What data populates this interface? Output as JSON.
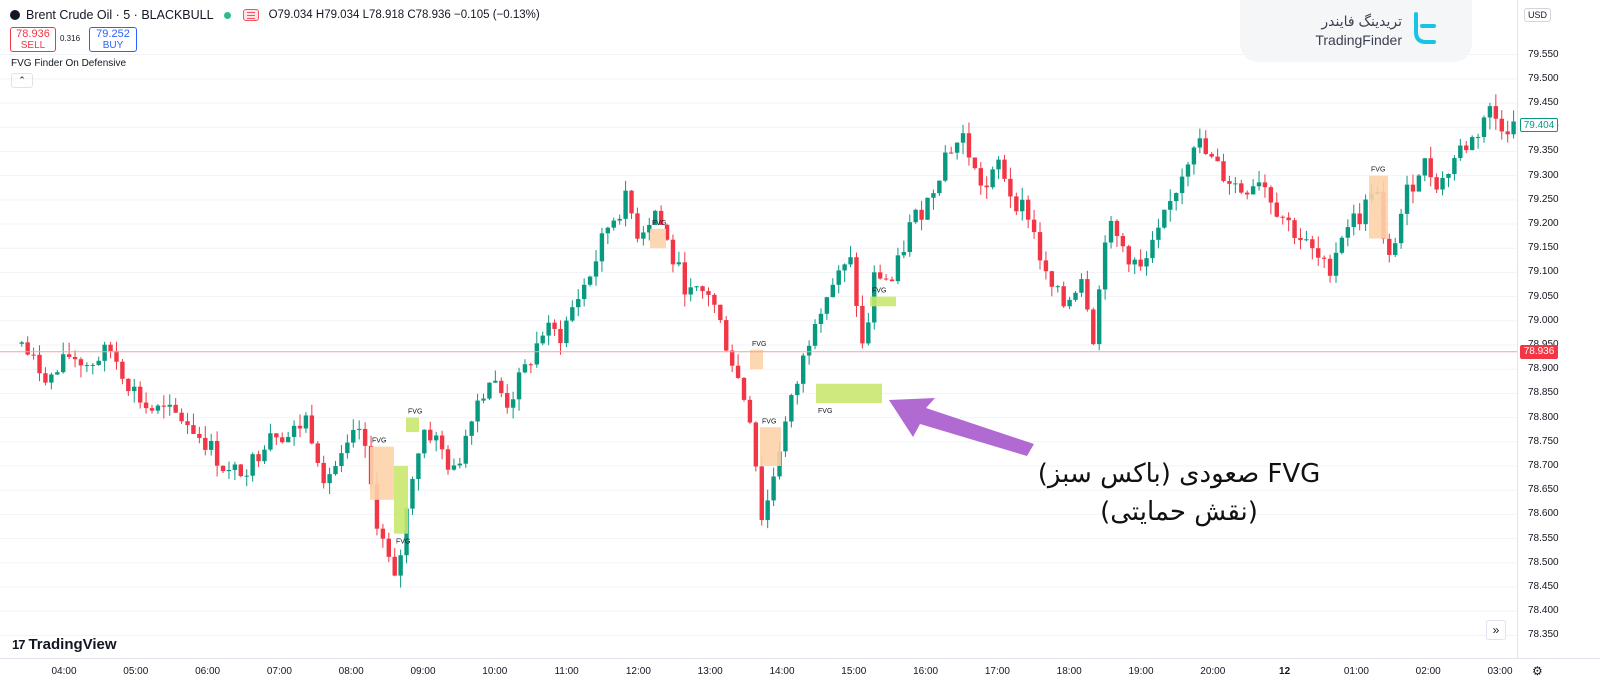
{
  "header": {
    "symbol": "Brent Crude Oil · 5 · BLACKBULL",
    "ohlc": "O79.034 H79.034 L78.918 C78.936 −0.105 (−0.13%)",
    "sell_price": "78.936",
    "sell_label": "SELL",
    "spread": "0.316",
    "buy_price": "79.252",
    "buy_label": "BUY",
    "indicator": "FVG Finder On Defensive",
    "collapse_icon": "chevron-up-icon"
  },
  "price_axis": {
    "currency": "USD",
    "ticks": [
      "79.550",
      "79.500",
      "79.450",
      "79.400",
      "79.350",
      "79.300",
      "79.250",
      "79.200",
      "79.150",
      "79.100",
      "79.050",
      "79.000",
      "78.950",
      "78.900",
      "78.850",
      "78.800",
      "78.750",
      "78.700",
      "78.650",
      "78.600",
      "78.550",
      "78.500",
      "78.450",
      "78.400",
      "78.350"
    ],
    "current_price": "78.936",
    "ma_price": "79.404"
  },
  "time_axis": {
    "ticks": [
      "04:00",
      "05:00",
      "06:00",
      "07:00",
      "08:00",
      "09:00",
      "10:00",
      "11:00",
      "12:00",
      "13:00",
      "14:00",
      "15:00",
      "16:00",
      "17:00",
      "18:00",
      "19:00",
      "20:00",
      "12",
      "01:00",
      "02:00",
      "03:00"
    ]
  },
  "branding": {
    "tradingview": "TradingView",
    "brand_fa": "تریدینگ فایندر",
    "brand_en": "TradingFinder"
  },
  "annotation": {
    "line1": "FVG صعودی (باکس سبز)",
    "line2": "(نقش حمایتی)"
  },
  "fvg_label": "FVG",
  "colors": {
    "up": "#089981",
    "down": "#f23645",
    "bull_fvg": "#c9e86e",
    "bear_fvg": "#fcd3a8",
    "arrow": "#b26ad3",
    "price_line": "#f7a1a8"
  },
  "chart_data": {
    "type": "candlestick",
    "symbol": "Brent Crude Oil",
    "timeframe": "5",
    "ylim": [
      78.33,
      79.57
    ],
    "current_price": 78.936,
    "path": [
      [
        "03:20",
        78.97
      ],
      [
        "03:35",
        78.91
      ],
      [
        "03:50",
        78.88
      ],
      [
        "04:05",
        78.93
      ],
      [
        "04:20",
        78.91
      ],
      [
        "04:40",
        78.94
      ],
      [
        "04:55",
        78.87
      ],
      [
        "05:10",
        78.82
      ],
      [
        "05:25",
        78.81
      ],
      [
        "05:40",
        78.8
      ],
      [
        "06:00",
        78.75
      ],
      [
        "06:20",
        78.68
      ],
      [
        "06:40",
        78.71
      ],
      [
        "06:55",
        78.78
      ],
      [
        "07:10",
        78.76
      ],
      [
        "07:25",
        78.8
      ],
      [
        "07:40",
        78.68
      ],
      [
        "07:55",
        78.71
      ],
      [
        "08:10",
        78.78
      ],
      [
        "08:25",
        78.58
      ],
      [
        "08:40",
        78.45
      ],
      [
        "08:55",
        78.7
      ],
      [
        "09:05",
        78.78
      ],
      [
        "09:15",
        78.75
      ],
      [
        "09:30",
        78.68
      ],
      [
        "09:45",
        78.82
      ],
      [
        "10:00",
        78.88
      ],
      [
        "10:15",
        78.83
      ],
      [
        "10:30",
        78.9
      ],
      [
        "10:45",
        78.98
      ],
      [
        "11:00",
        78.97
      ],
      [
        "11:10",
        79.03
      ],
      [
        "11:25",
        79.1
      ],
      [
        "11:40",
        79.2
      ],
      [
        "11:55",
        79.25
      ],
      [
        "12:05",
        79.18
      ],
      [
        "12:20",
        79.23
      ],
      [
        "12:35",
        79.12
      ],
      [
        "12:50",
        79.05
      ],
      [
        "13:05",
        79.06
      ],
      [
        "13:20",
        78.95
      ],
      [
        "13:40",
        78.8
      ],
      [
        "13:50",
        78.58
      ],
      [
        "14:05",
        78.75
      ],
      [
        "14:20",
        78.88
      ],
      [
        "14:35",
        79.02
      ],
      [
        "14:50",
        79.08
      ],
      [
        "15:05",
        79.12
      ],
      [
        "15:15",
        78.93
      ],
      [
        "15:25",
        79.1
      ],
      [
        "15:40",
        79.08
      ],
      [
        "15:55",
        79.2
      ],
      [
        "16:10",
        79.25
      ],
      [
        "16:25",
        79.35
      ],
      [
        "16:40",
        79.38
      ],
      [
        "16:50",
        79.3
      ],
      [
        "17:00",
        79.27
      ],
      [
        "17:10",
        79.33
      ],
      [
        "17:20",
        79.26
      ],
      [
        "17:35",
        79.22
      ],
      [
        "17:50",
        79.08
      ],
      [
        "18:05",
        79.03
      ],
      [
        "18:20",
        79.1
      ],
      [
        "18:30",
        78.96
      ],
      [
        "18:40",
        79.2
      ],
      [
        "18:55",
        79.15
      ],
      [
        "19:10",
        79.1
      ],
      [
        "19:25",
        79.18
      ],
      [
        "19:40",
        79.28
      ],
      [
        "19:55",
        79.38
      ],
      [
        "20:05",
        79.34
      ],
      [
        "20:20",
        79.3
      ],
      [
        "20:35",
        79.27
      ],
      [
        "20:50",
        79.3
      ],
      [
        "21:05",
        79.23
      ],
      [
        "00:30",
        79.1
      ],
      [
        "00:45",
        79.2
      ],
      [
        "01:00",
        79.22
      ],
      [
        "01:10",
        79.3
      ],
      [
        "01:20",
        79.1
      ],
      [
        "01:35",
        79.25
      ],
      [
        "01:50",
        79.33
      ],
      [
        "02:05",
        79.28
      ],
      [
        "02:20",
        79.35
      ],
      [
        "02:35",
        79.38
      ],
      [
        "02:45",
        79.44
      ],
      [
        "02:55",
        79.41
      ],
      [
        "03:10",
        79.4
      ]
    ],
    "fvg_zones": [
      {
        "direction": "bearish",
        "top": 78.74,
        "bottom": 78.63,
        "label": "FVG"
      },
      {
        "direction": "bullish",
        "top": 78.7,
        "bottom": 78.56,
        "label": "FVG"
      },
      {
        "direction": "bullish",
        "top": 78.8,
        "bottom": 78.77,
        "label": "FVG"
      },
      {
        "direction": "bearish",
        "top": 79.19,
        "bottom": 79.15,
        "label": "FVG"
      },
      {
        "direction": "bearish",
        "top": 78.94,
        "bottom": 78.9,
        "label": "FVG"
      },
      {
        "direction": "bearish",
        "top": 78.78,
        "bottom": 78.7,
        "label": "FVG"
      },
      {
        "direction": "bullish",
        "top": 78.87,
        "bottom": 78.83,
        "label": "FVG"
      },
      {
        "direction": "bullish",
        "top": 79.05,
        "bottom": 79.03,
        "label": "FVG"
      },
      {
        "direction": "bearish",
        "top": 79.3,
        "bottom": 79.17,
        "label": "FVG"
      }
    ]
  }
}
